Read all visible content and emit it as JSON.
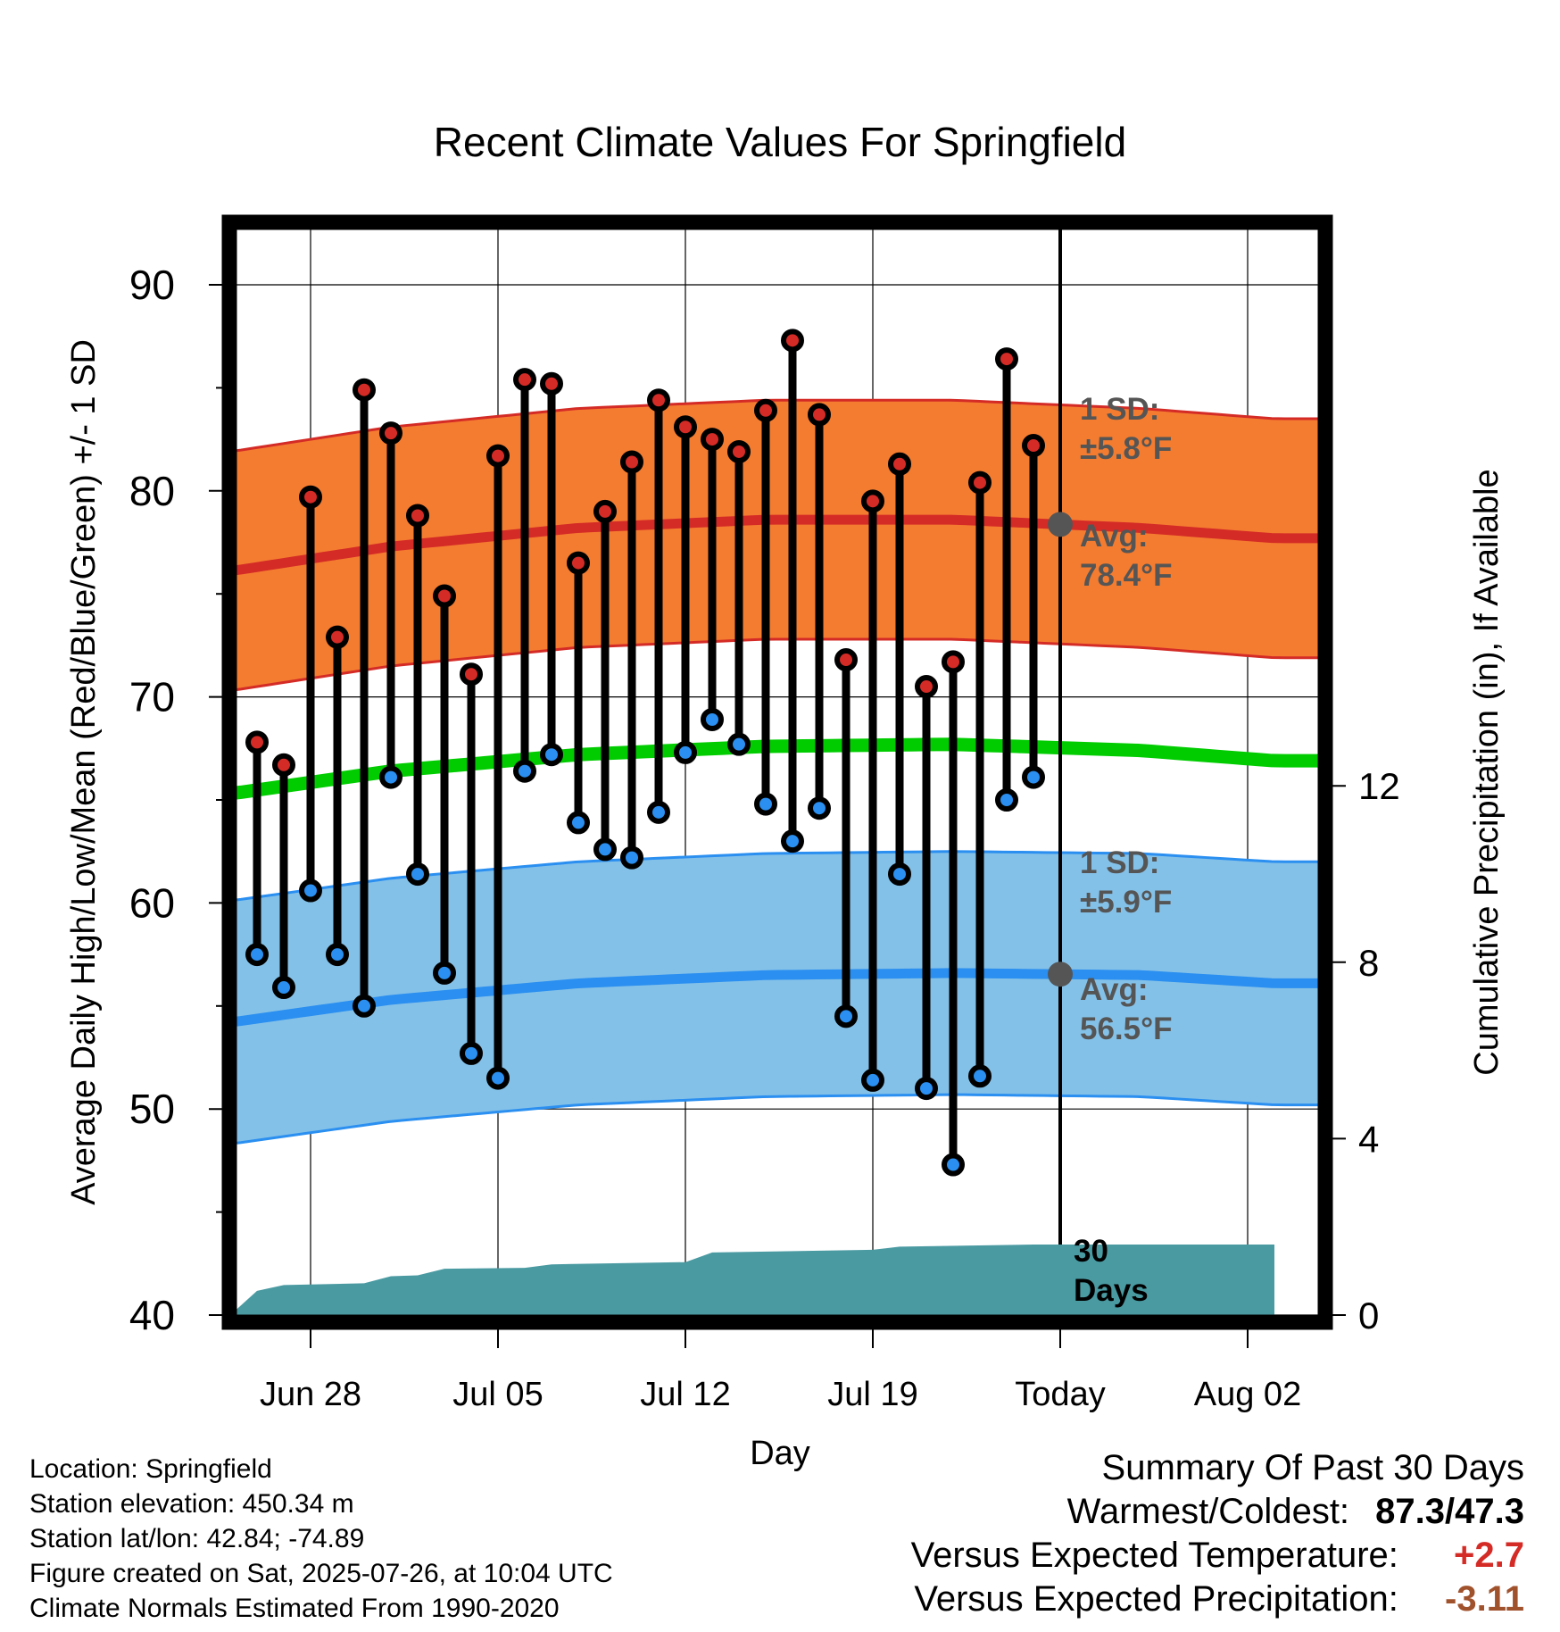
{
  "chart_data": {
    "type": "line",
    "title": "Recent Climate Values For Springfield",
    "xlabel": "Day",
    "ylabel": "Average Daily High/Low/Mean (Red/Blue/Green) +/- 1 SD",
    "y2label": "Cumulative Precipitation (in), If Available",
    "ylim": [
      40,
      93
    ],
    "y2lim": [
      0,
      18
    ],
    "yticks": [
      "40",
      "50",
      "60",
      "70",
      "80",
      "90"
    ],
    "y2ticks": [
      "0",
      "4",
      "8",
      "12"
    ],
    "xticks": [
      "Jun 28",
      "Jul 05",
      "Jul 12",
      "Jul 19",
      "Today",
      "Aug 02"
    ],
    "x_start": "Jun 25",
    "today_marker": "Today",
    "grid": true,
    "normals": {
      "dates": [
        "Jun 25",
        "Jul 01",
        "Jul 08",
        "Jul 15",
        "Jul 22",
        "Jul 29",
        "Aug 03"
      ],
      "high_avg": [
        76.1,
        77.3,
        78.2,
        78.6,
        78.6,
        78.2,
        77.7
      ],
      "high_sd": 5.8,
      "low_avg": [
        54.2,
        55.3,
        56.1,
        56.5,
        56.6,
        56.5,
        56.1
      ],
      "low_sd": 5.9,
      "mean_avg": [
        65.3,
        66.4,
        67.2,
        67.6,
        67.7,
        67.4,
        66.9
      ]
    },
    "series": [
      {
        "name": "High",
        "dates": [
          "Jun 26",
          "Jun 27",
          "Jun 28",
          "Jun 29",
          "Jun 30",
          "Jul 01",
          "Jul 02",
          "Jul 03",
          "Jul 04",
          "Jul 05",
          "Jul 06",
          "Jul 07",
          "Jul 08",
          "Jul 09",
          "Jul 10",
          "Jul 11",
          "Jul 12",
          "Jul 13",
          "Jul 14",
          "Jul 15",
          "Jul 16",
          "Jul 17",
          "Jul 18",
          "Jul 19",
          "Jul 20",
          "Jul 21",
          "Jul 22",
          "Jul 23",
          "Jul 24",
          "Jul 25"
        ],
        "values": [
          67.8,
          66.7,
          79.7,
          72.9,
          84.9,
          82.8,
          78.8,
          74.9,
          71.1,
          81.7,
          85.4,
          85.2,
          76.5,
          79.0,
          81.4,
          84.4,
          83.1,
          82.5,
          81.9,
          83.9,
          87.3,
          83.7,
          71.8,
          79.5,
          81.3,
          70.5,
          71.7,
          80.4,
          86.4,
          82.2
        ]
      },
      {
        "name": "Low",
        "dates": [
          "Jun 26",
          "Jun 27",
          "Jun 28",
          "Jun 29",
          "Jun 30",
          "Jul 01",
          "Jul 02",
          "Jul 03",
          "Jul 04",
          "Jul 05",
          "Jul 06",
          "Jul 07",
          "Jul 08",
          "Jul 09",
          "Jul 10",
          "Jul 11",
          "Jul 12",
          "Jul 13",
          "Jul 14",
          "Jul 15",
          "Jul 16",
          "Jul 17",
          "Jul 18",
          "Jul 19",
          "Jul 20",
          "Jul 21",
          "Jul 22",
          "Jul 23",
          "Jul 24",
          "Jul 25"
        ],
        "values": [
          57.5,
          55.9,
          60.6,
          57.5,
          55.0,
          66.1,
          61.4,
          56.6,
          52.7,
          51.5,
          66.4,
          67.2,
          63.9,
          62.6,
          62.2,
          64.4,
          67.3,
          68.9,
          67.7,
          64.8,
          63.0,
          64.6,
          54.5,
          51.4,
          61.4,
          51.0,
          47.3,
          51.6,
          65.0,
          66.1
        ]
      },
      {
        "name": "Cumulative Precipitation",
        "dates": [
          "Jun 25",
          "Jun 26",
          "Jun 27",
          "Jun 30",
          "Jul 01",
          "Jul 02",
          "Jul 03",
          "Jul 06",
          "Jul 07",
          "Jul 12",
          "Jul 13",
          "Jul 19",
          "Jul 20",
          "Jul 25",
          "Aug 03"
        ],
        "values": [
          0.0,
          0.55,
          0.68,
          0.72,
          0.88,
          0.9,
          1.05,
          1.07,
          1.15,
          1.2,
          1.42,
          1.48,
          1.55,
          1.6,
          1.6
        ]
      }
    ],
    "colors": {
      "high_band": "#f47c30",
      "high_line": "#d42b26",
      "low_band": "#84c1e8",
      "low_line": "#2a8ff0",
      "mean_line": "#00cc00",
      "precip": "#4a9aa2",
      "high_dot": "#d42b26",
      "low_dot": "#2a8ff0",
      "annotation": "#555555"
    },
    "annotations": {
      "high_sd_label": "1 SD:",
      "high_sd_value": "±5.8°F",
      "high_avg_label": "Avg:",
      "high_avg_value": "78.4°F",
      "low_sd_label": "1 SD:",
      "low_sd_value": "±5.9°F",
      "low_avg_label": "Avg:",
      "low_avg_value": "56.5°F",
      "days_count": "30",
      "days_label": "Days"
    }
  },
  "footer": {
    "location": "Location: Springfield",
    "elevation": "Station elevation: 450.34 m",
    "latlon": "Station lat/lon: 42.84; -74.89",
    "created": "Figure created on Sat, 2025-07-26, at 10:04 UTC",
    "normals": "Climate Normals Estimated From 1990-2020"
  },
  "summary": {
    "title": "Summary Of Past 30 Days",
    "warm_cold_label": "Warmest/Coldest:",
    "warm_cold_value": "87.3/47.3",
    "temp_label": "Versus Expected Temperature:",
    "temp_value": "+2.7",
    "temp_color": "#d42b26",
    "precip_label": "Versus Expected Precipitation:",
    "precip_value": "-3.11",
    "precip_color": "#a0522d"
  }
}
